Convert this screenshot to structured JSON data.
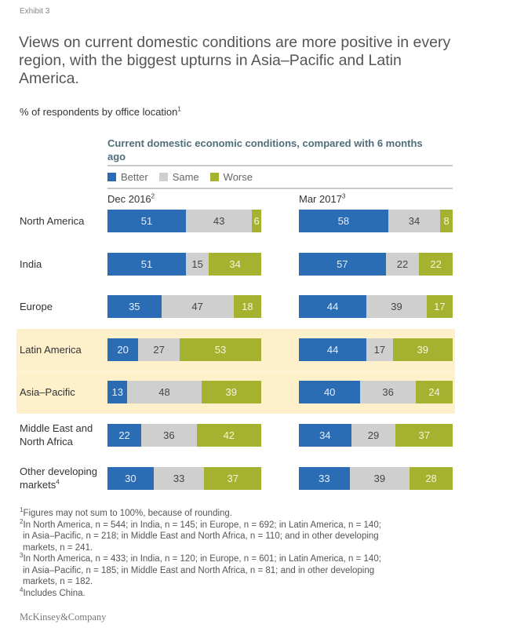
{
  "exhibit_label": "Exhibit 3",
  "title": "Views on current domestic conditions are more positive in every region, with the biggest upturns in Asia–Pacific and Latin America.",
  "subtitle": "% of respondents by office location",
  "subtitle_sup": "1",
  "logo": "McKinsey&Company",
  "colors": {
    "better": "#2a6db5",
    "same": "#cfcfcf",
    "worse": "#a5b22f",
    "highlight": "#fdf0cb"
  },
  "chart_data": {
    "type": "bar",
    "orientation": "horizontal-stacked-100",
    "title": "Current domestic economic conditions, compared with 6 months ago",
    "legend": [
      {
        "key": "better",
        "label": "Better"
      },
      {
        "key": "same",
        "label": "Same"
      },
      {
        "key": "worse",
        "label": "Worse"
      }
    ],
    "legend_position": "top-left",
    "periods": [
      {
        "label": "Dec 2016",
        "sup": "2"
      },
      {
        "label": "Mar 2017",
        "sup": "3"
      }
    ],
    "categories": [
      "North America",
      "India",
      "Europe",
      "Latin America",
      "Asia–Pacific",
      "Middle East and North Africa",
      "Other developing markets"
    ],
    "category_lines": [
      [
        "North America"
      ],
      [
        "India"
      ],
      [
        "Europe"
      ],
      [
        "Latin America"
      ],
      [
        "Asia–Pacific"
      ],
      [
        "Middle East and",
        "North Africa"
      ],
      [
        "Other developing",
        "markets"
      ]
    ],
    "category_sups": [
      "",
      "",
      "",
      "",
      "",
      "",
      "4"
    ],
    "highlighted": [
      "Latin America",
      "Asia–Pacific"
    ],
    "series": [
      {
        "period": "Dec 2016",
        "better": [
          51,
          51,
          35,
          20,
          13,
          22,
          30
        ],
        "same": [
          43,
          15,
          47,
          27,
          48,
          36,
          33
        ],
        "worse": [
          6,
          34,
          18,
          53,
          39,
          42,
          37
        ]
      },
      {
        "period": "Mar 2017",
        "better": [
          58,
          57,
          44,
          44,
          40,
          34,
          33
        ],
        "same": [
          34,
          22,
          39,
          17,
          36,
          29,
          39
        ],
        "worse": [
          8,
          22,
          17,
          39,
          24,
          37,
          28
        ]
      }
    ],
    "unit": "%"
  },
  "footnotes": [
    {
      "sup": "1",
      "lines": [
        "Figures may not sum to 100%, because of rounding."
      ]
    },
    {
      "sup": "2",
      "lines": [
        "In North America, n = 544; in India, n = 145; in Europe, n = 692; in Latin America, n = 140;",
        "in Asia–Pacific, n = 218; in Middle East and North Africa, n = 110; and in other developing",
        "markets, n = 241."
      ]
    },
    {
      "sup": "3",
      "lines": [
        "In North America, n = 433; in India, n = 120; in Europe, n = 601; in Latin America, n = 140;",
        "in Asia–Pacific, n = 185; in Middle East and North Africa, n = 81; and in other developing",
        "markets, n = 182."
      ]
    },
    {
      "sup": "4",
      "lines": [
        "Includes China."
      ]
    }
  ]
}
